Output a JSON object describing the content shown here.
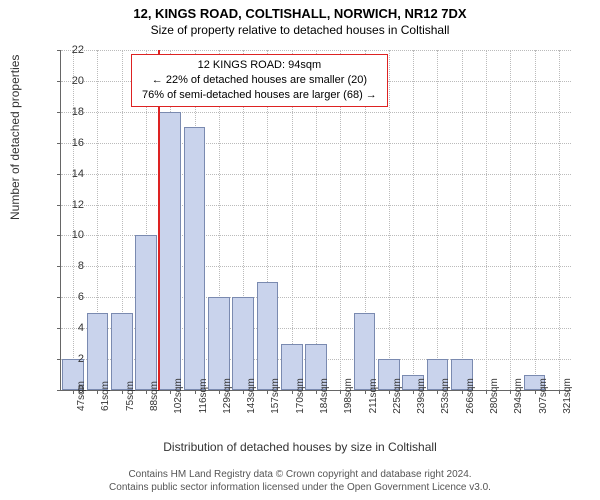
{
  "header": {
    "address": "12, KINGS ROAD, COLTISHALL, NORWICH, NR12 7DX",
    "subtitle": "Size of property relative to detached houses in Coltishall"
  },
  "chart": {
    "type": "bar",
    "bar_fill": "#c9d3ec",
    "bar_border": "#7a8ab0",
    "grid_color": "#bbbbbb",
    "background_color": "#ffffff",
    "yaxis": {
      "label": "Number of detached properties",
      "ticks": [
        0,
        2,
        4,
        6,
        8,
        10,
        12,
        14,
        16,
        18,
        20,
        22
      ],
      "ylim": [
        0,
        22
      ]
    },
    "xaxis": {
      "label": "Distribution of detached houses by size in Coltishall",
      "ticks": [
        "47sqm",
        "61sqm",
        "75sqm",
        "88sqm",
        "102sqm",
        "116sqm",
        "129sqm",
        "143sqm",
        "157sqm",
        "170sqm",
        "184sqm",
        "198sqm",
        "211sqm",
        "225sqm",
        "239sqm",
        "253sqm",
        "266sqm",
        "280sqm",
        "294sqm",
        "307sqm",
        "321sqm"
      ]
    },
    "bars": [
      2,
      5,
      5,
      10,
      18,
      17,
      6,
      6,
      7,
      3,
      3,
      0,
      5,
      2,
      1,
      2,
      2,
      0,
      0,
      1,
      0
    ],
    "bar_rel_width": 0.9,
    "marker": {
      "position_index": 3.5,
      "color": "#dd2222"
    },
    "annotation": {
      "line1": "12 KINGS ROAD: 94sqm",
      "line2": "← 22% of detached houses are smaller (20)",
      "line3": "76% of semi-detached houses are larger (68) →"
    }
  },
  "attribution": {
    "line1": "Contains HM Land Registry data © Crown copyright and database right 2024.",
    "line2": "Contains public sector information licensed under the Open Government Licence v3.0."
  }
}
